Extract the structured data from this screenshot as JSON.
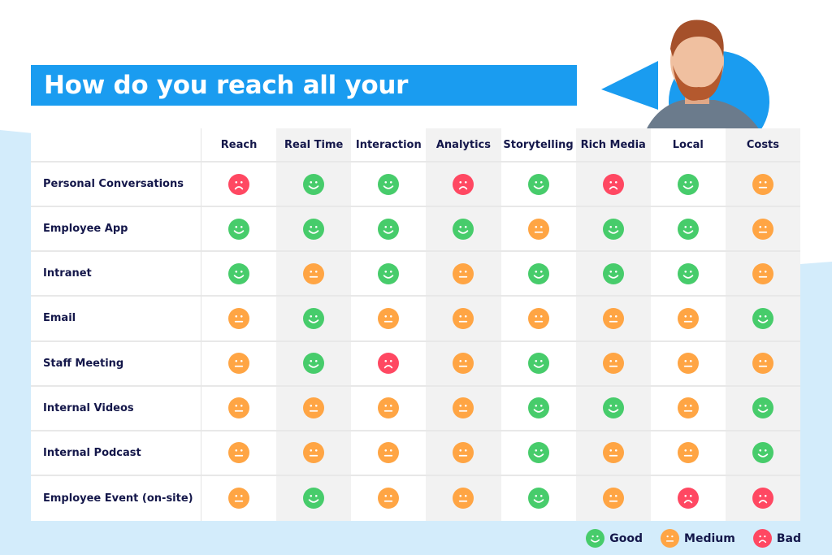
{
  "title": "How do you reach all your employees?",
  "colors": {
    "good": "#47cc6b",
    "medium": "#ffa544",
    "bad": "#ff4862",
    "banner": "#1a9cf0",
    "background_shape": "#d3ecfb",
    "text": "#14174a"
  },
  "columns": [
    "Reach",
    "Real Time",
    "Interaction",
    "Analytics",
    "Storytelling",
    "Rich Media",
    "Local",
    "Costs"
  ],
  "rows": [
    {
      "label": "Personal Conversations",
      "ratings": [
        "bad",
        "good",
        "good",
        "bad",
        "good",
        "bad",
        "good",
        "medium"
      ]
    },
    {
      "label": "Employee App",
      "ratings": [
        "good",
        "good",
        "good",
        "good",
        "medium",
        "good",
        "good",
        "medium"
      ]
    },
    {
      "label": "Intranet",
      "ratings": [
        "good",
        "medium",
        "good",
        "medium",
        "good",
        "good",
        "good",
        "medium"
      ]
    },
    {
      "label": "Email",
      "ratings": [
        "medium",
        "good",
        "medium",
        "medium",
        "medium",
        "medium",
        "medium",
        "good"
      ]
    },
    {
      "label": "Staff Meeting",
      "ratings": [
        "medium",
        "good",
        "bad",
        "medium",
        "good",
        "medium",
        "medium",
        "medium"
      ]
    },
    {
      "label": "Internal Videos",
      "ratings": [
        "medium",
        "medium",
        "medium",
        "medium",
        "good",
        "good",
        "medium",
        "good"
      ]
    },
    {
      "label": "Internal Podcast",
      "ratings": [
        "medium",
        "medium",
        "medium",
        "medium",
        "good",
        "medium",
        "medium",
        "good"
      ]
    },
    {
      "label": "Employee Event (on-site)",
      "ratings": [
        "medium",
        "good",
        "medium",
        "medium",
        "good",
        "medium",
        "bad",
        "bad"
      ]
    }
  ],
  "legend": [
    {
      "key": "good",
      "label": "Good",
      "icon": "smiley-happy-icon"
    },
    {
      "key": "medium",
      "label": "Medium",
      "icon": "smiley-neutral-icon"
    },
    {
      "key": "bad",
      "label": "Bad",
      "icon": "smiley-sad-icon"
    }
  ]
}
